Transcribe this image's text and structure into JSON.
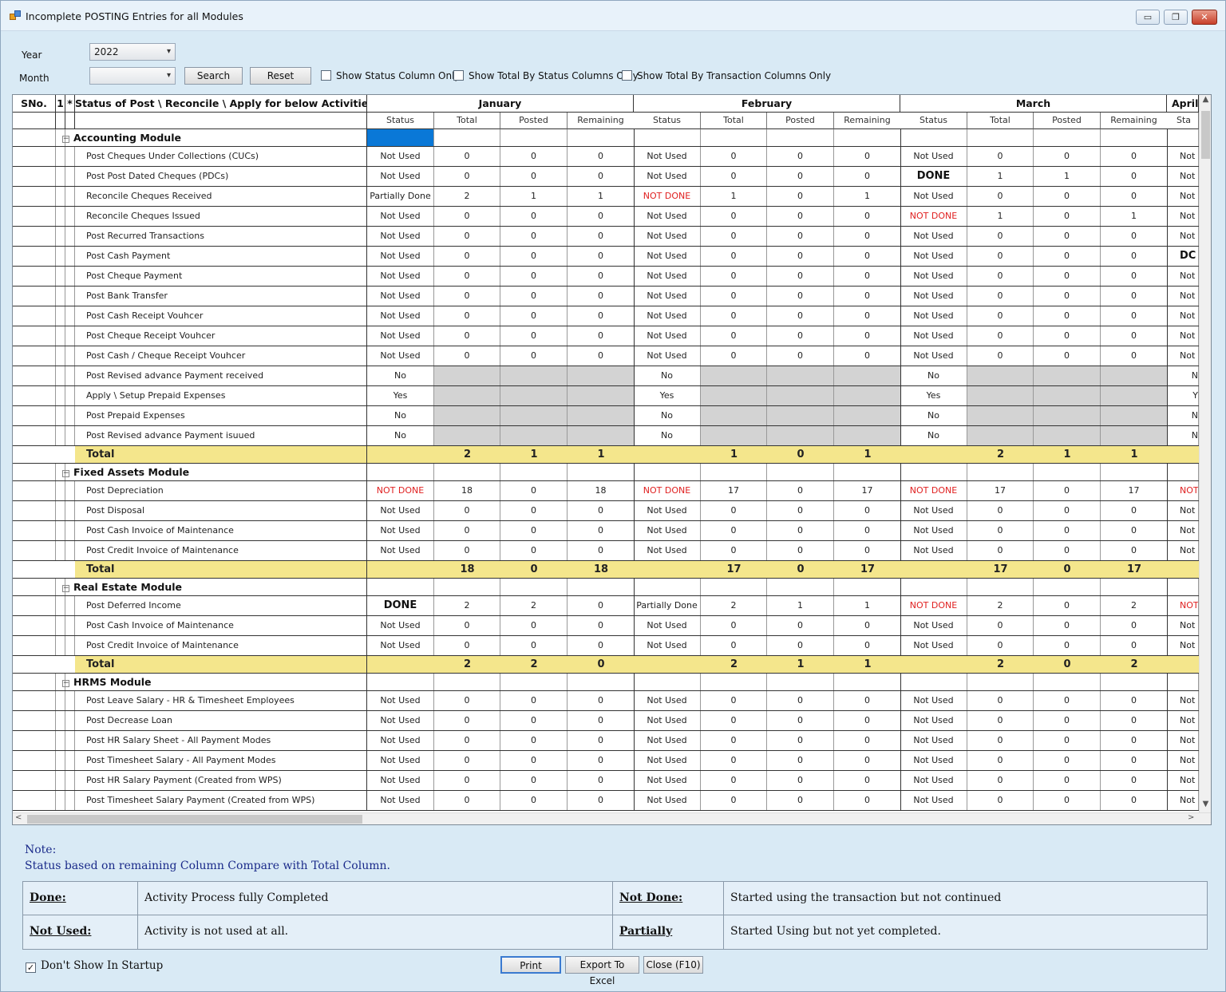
{
  "window": {
    "title": "Incomplete POSTING Entries for all Modules",
    "min": "▭",
    "max": "❐",
    "close": "✕"
  },
  "filters": {
    "year_label": "Year",
    "year_value": "2022",
    "month_label": "Month",
    "month_value": "",
    "search_label": "Search",
    "reset_label": "Reset",
    "chk_status": "Show Status Column Only",
    "chk_total_status": "Show Total By Status Columns Only",
    "chk_total_txn": "Show Total By Transaction Columns Only"
  },
  "grid": {
    "h_sno": "SNo.",
    "h_one": "1",
    "h_star": "*",
    "h_activity": "Status of Post \\ Reconcile \\ Apply for below Activities",
    "months": [
      "January",
      "February",
      "March",
      "April"
    ],
    "sub": [
      "Status",
      "Total",
      "Posted",
      "Remaining"
    ],
    "april_sub": "Sta",
    "total_label": "Total"
  },
  "modules": [
    {
      "name": "Accounting Module",
      "rows": [
        {
          "name": "Post Cheques Under Collections (CUCs)",
          "m": [
            [
              "Not Used",
              "0",
              "0",
              "0"
            ],
            [
              "Not Used",
              "0",
              "0",
              "0"
            ],
            [
              "Not Used",
              "0",
              "0",
              "0"
            ]
          ],
          "apr": "Not"
        },
        {
          "name": "Post Post Dated Cheques (PDCs)",
          "m": [
            [
              "Not Used",
              "0",
              "0",
              "0"
            ],
            [
              "Not Used",
              "0",
              "0",
              "0"
            ],
            [
              "DONE",
              "1",
              "1",
              "0"
            ]
          ],
          "apr": "Not"
        },
        {
          "name": "Reconcile Cheques Received",
          "m": [
            [
              "Partially Done",
              "2",
              "1",
              "1"
            ],
            [
              "NOT DONE",
              "1",
              "0",
              "1"
            ],
            [
              "Not Used",
              "0",
              "0",
              "0"
            ]
          ],
          "apr": "Not"
        },
        {
          "name": "Reconcile Cheques Issued",
          "m": [
            [
              "Not Used",
              "0",
              "0",
              "0"
            ],
            [
              "Not Used",
              "0",
              "0",
              "0"
            ],
            [
              "NOT DONE",
              "1",
              "0",
              "1"
            ]
          ],
          "apr": "Not"
        },
        {
          "name": "Post Recurred Transactions",
          "m": [
            [
              "Not Used",
              "0",
              "0",
              "0"
            ],
            [
              "Not Used",
              "0",
              "0",
              "0"
            ],
            [
              "Not Used",
              "0",
              "0",
              "0"
            ]
          ],
          "apr": "Not"
        },
        {
          "name": "Post Cash Payment",
          "m": [
            [
              "Not Used",
              "0",
              "0",
              "0"
            ],
            [
              "Not Used",
              "0",
              "0",
              "0"
            ],
            [
              "Not Used",
              "0",
              "0",
              "0"
            ]
          ],
          "apr": "DC"
        },
        {
          "name": "Post Cheque Payment",
          "m": [
            [
              "Not Used",
              "0",
              "0",
              "0"
            ],
            [
              "Not Used",
              "0",
              "0",
              "0"
            ],
            [
              "Not Used",
              "0",
              "0",
              "0"
            ]
          ],
          "apr": "Not"
        },
        {
          "name": "Post Bank Transfer",
          "m": [
            [
              "Not Used",
              "0",
              "0",
              "0"
            ],
            [
              "Not Used",
              "0",
              "0",
              "0"
            ],
            [
              "Not Used",
              "0",
              "0",
              "0"
            ]
          ],
          "apr": "Not"
        },
        {
          "name": "Post Cash Receipt Vouhcer",
          "m": [
            [
              "Not Used",
              "0",
              "0",
              "0"
            ],
            [
              "Not Used",
              "0",
              "0",
              "0"
            ],
            [
              "Not Used",
              "0",
              "0",
              "0"
            ]
          ],
          "apr": "Not"
        },
        {
          "name": "Post Cheque Receipt Vouhcer",
          "m": [
            [
              "Not Used",
              "0",
              "0",
              "0"
            ],
            [
              "Not Used",
              "0",
              "0",
              "0"
            ],
            [
              "Not Used",
              "0",
              "0",
              "0"
            ]
          ],
          "apr": "Not"
        },
        {
          "name": "Post Cash / Cheque Receipt Vouhcer",
          "m": [
            [
              "Not Used",
              "0",
              "0",
              "0"
            ],
            [
              "Not Used",
              "0",
              "0",
              "0"
            ],
            [
              "Not Used",
              "0",
              "0",
              "0"
            ]
          ],
          "apr": "Not"
        },
        {
          "name": "Post Revised advance Payment received",
          "g": true,
          "m": [
            [
              "No"
            ],
            [
              "No"
            ],
            [
              "No"
            ]
          ],
          "apr": "N"
        },
        {
          "name": "Apply \\ Setup Prepaid Expenses",
          "g": true,
          "m": [
            [
              "Yes"
            ],
            [
              "Yes"
            ],
            [
              "Yes"
            ]
          ],
          "apr": "Y"
        },
        {
          "name": "Post Prepaid Expenses",
          "g": true,
          "m": [
            [
              "No"
            ],
            [
              "No"
            ],
            [
              "No"
            ]
          ],
          "apr": "N"
        },
        {
          "name": "Post Revised advance Payment isuued",
          "g": true,
          "m": [
            [
              "No"
            ],
            [
              "No"
            ],
            [
              "No"
            ]
          ],
          "apr": "N"
        }
      ],
      "total": [
        [
          "2",
          "1",
          "1"
        ],
        [
          "1",
          "0",
          "1"
        ],
        [
          "2",
          "1",
          "1"
        ]
      ]
    },
    {
      "name": "Fixed Assets Module",
      "rows": [
        {
          "name": "Post Depreciation",
          "m": [
            [
              "NOT DONE",
              "18",
              "0",
              "18"
            ],
            [
              "NOT DONE",
              "17",
              "0",
              "17"
            ],
            [
              "NOT DONE",
              "17",
              "0",
              "17"
            ]
          ],
          "apr": "NOT"
        },
        {
          "name": "Post Disposal",
          "m": [
            [
              "Not Used",
              "0",
              "0",
              "0"
            ],
            [
              "Not Used",
              "0",
              "0",
              "0"
            ],
            [
              "Not Used",
              "0",
              "0",
              "0"
            ]
          ],
          "apr": "Not"
        },
        {
          "name": "Post Cash Invoice of Maintenance",
          "m": [
            [
              "Not Used",
              "0",
              "0",
              "0"
            ],
            [
              "Not Used",
              "0",
              "0",
              "0"
            ],
            [
              "Not Used",
              "0",
              "0",
              "0"
            ]
          ],
          "apr": "Not"
        },
        {
          "name": "Post Credit Invoice of Maintenance",
          "m": [
            [
              "Not Used",
              "0",
              "0",
              "0"
            ],
            [
              "Not Used",
              "0",
              "0",
              "0"
            ],
            [
              "Not Used",
              "0",
              "0",
              "0"
            ]
          ],
          "apr": "Not"
        }
      ],
      "total": [
        [
          "18",
          "0",
          "18"
        ],
        [
          "17",
          "0",
          "17"
        ],
        [
          "17",
          "0",
          "17"
        ]
      ]
    },
    {
      "name": "Real Estate Module",
      "rows": [
        {
          "name": "Post Deferred Income",
          "m": [
            [
              "DONE",
              "2",
              "2",
              "0"
            ],
            [
              "Partially Done",
              "2",
              "1",
              "1"
            ],
            [
              "NOT DONE",
              "2",
              "0",
              "2"
            ]
          ],
          "apr": "NOT"
        },
        {
          "name": "Post Cash Invoice of Maintenance",
          "m": [
            [
              "Not Used",
              "0",
              "0",
              "0"
            ],
            [
              "Not Used",
              "0",
              "0",
              "0"
            ],
            [
              "Not Used",
              "0",
              "0",
              "0"
            ]
          ],
          "apr": "Not"
        },
        {
          "name": "Post Credit Invoice of Maintenance",
          "m": [
            [
              "Not Used",
              "0",
              "0",
              "0"
            ],
            [
              "Not Used",
              "0",
              "0",
              "0"
            ],
            [
              "Not Used",
              "0",
              "0",
              "0"
            ]
          ],
          "apr": "Not"
        }
      ],
      "total": [
        [
          "2",
          "2",
          "0"
        ],
        [
          "2",
          "1",
          "1"
        ],
        [
          "2",
          "0",
          "2"
        ]
      ]
    },
    {
      "name": "HRMS Module",
      "rows": [
        {
          "name": "Post Leave Salary - HR & Timesheet Employees",
          "m": [
            [
              "Not Used",
              "0",
              "0",
              "0"
            ],
            [
              "Not Used",
              "0",
              "0",
              "0"
            ],
            [
              "Not Used",
              "0",
              "0",
              "0"
            ]
          ],
          "apr": "Not"
        },
        {
          "name": "Post Decrease Loan",
          "m": [
            [
              "Not Used",
              "0",
              "0",
              "0"
            ],
            [
              "Not Used",
              "0",
              "0",
              "0"
            ],
            [
              "Not Used",
              "0",
              "0",
              "0"
            ]
          ],
          "apr": "Not"
        },
        {
          "name": "Post HR Salary Sheet - All Payment Modes",
          "m": [
            [
              "Not Used",
              "0",
              "0",
              "0"
            ],
            [
              "Not Used",
              "0",
              "0",
              "0"
            ],
            [
              "Not Used",
              "0",
              "0",
              "0"
            ]
          ],
          "apr": "Not"
        },
        {
          "name": "Post Timesheet Salary - All Payment Modes",
          "m": [
            [
              "Not Used",
              "0",
              "0",
              "0"
            ],
            [
              "Not Used",
              "0",
              "0",
              "0"
            ],
            [
              "Not Used",
              "0",
              "0",
              "0"
            ]
          ],
          "apr": "Not"
        },
        {
          "name": "Post HR Salary Payment (Created from WPS)",
          "m": [
            [
              "Not Used",
              "0",
              "0",
              "0"
            ],
            [
              "Not Used",
              "0",
              "0",
              "0"
            ],
            [
              "Not Used",
              "0",
              "0",
              "0"
            ]
          ],
          "apr": "Not"
        },
        {
          "name": "Post Timesheet Salary Payment (Created from WPS)",
          "m": [
            [
              "Not Used",
              "0",
              "0",
              "0"
            ],
            [
              "Not Used",
              "0",
              "0",
              "0"
            ],
            [
              "Not Used",
              "0",
              "0",
              "0"
            ]
          ],
          "apr": "Not"
        }
      ]
    }
  ],
  "notes": {
    "title": "Note:",
    "text": "Status based on remaining Column Compare with Total Column."
  },
  "legend": {
    "done_k": "Done:",
    "done_v": "Activity Process fully Completed",
    "notdone_k": "Not Done:",
    "notdone_v": "Started using the transaction but not continued",
    "notused_k": "Not Used:",
    "notused_v": "Activity is not used at all.",
    "partial_k": "Partially",
    "partial_v": "Started Using but not yet completed."
  },
  "footer": {
    "dont_show": "Don't Show In Startup",
    "print": "Print",
    "export": "Export To Excel",
    "close": "Close (F10)"
  },
  "colors": {
    "not_done": "#e02020",
    "total_row": "#f4e68c",
    "selection": "#0a78d7",
    "disabled": "#d3d3d3"
  }
}
